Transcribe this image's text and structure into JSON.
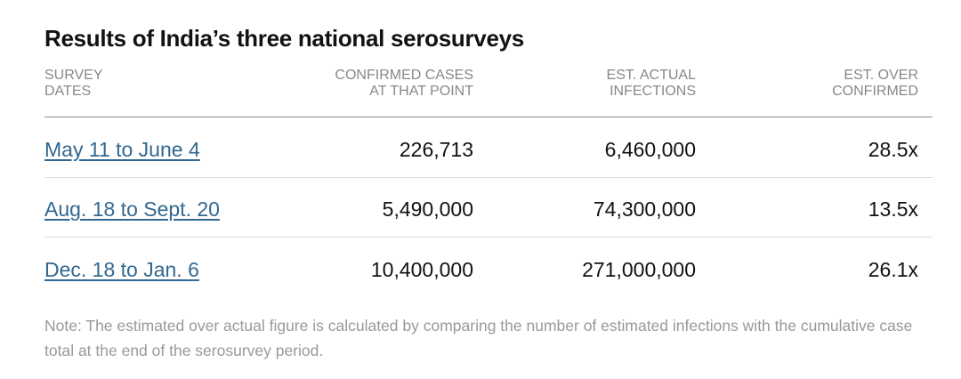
{
  "chart_data": {
    "type": "table",
    "title": "Results of India’s three national serosurveys",
    "columns": [
      "SURVEY\nDATES",
      "CONFIRMED CASES\nAT THAT POINT",
      "EST. ACTUAL\nINFECTIONS",
      "EST. OVER\nCONFIRMED"
    ],
    "rows": [
      [
        "May 11 to June 4",
        "226,713",
        "6,460,000",
        "28.5x"
      ],
      [
        "Aug. 18 to Sept. 20",
        "5,490,000",
        "74,300,000",
        "13.5x"
      ],
      [
        "Dec. 18 to Jan. 6",
        "10,400,000",
        "271,000,000",
        "26.1x"
      ]
    ],
    "note": "Note: The estimated over actual figure is calculated by comparing the number of estimated infections with the cumulative case total at the end of the serosurvey period.",
    "colors": {
      "link": "#326891",
      "muted": "#888888",
      "rule": "#8f8f8f"
    }
  }
}
